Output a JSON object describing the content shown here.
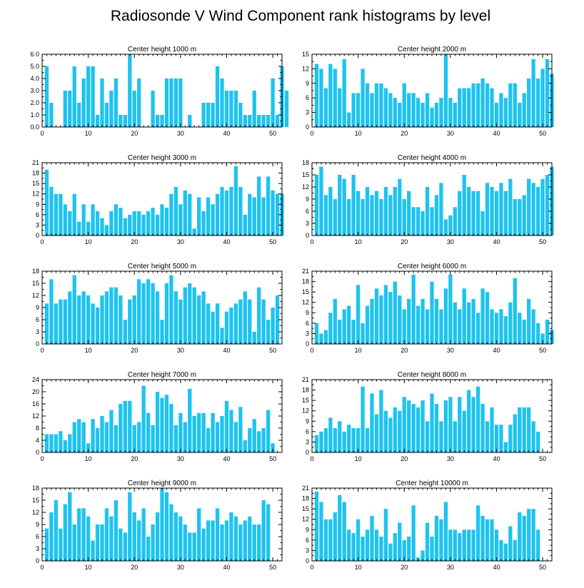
{
  "title": "Radiosonde V Wind Component rank histograms by level",
  "colors": {
    "bar": "#1ec3f0",
    "axis": "#000000",
    "background": "#ffffff"
  },
  "chart_data": [
    {
      "type": "bar",
      "title": "Center height 1000 m",
      "xlim": [
        0,
        52
      ],
      "ylim": [
        0,
        6
      ],
      "xticks": [
        0,
        10,
        20,
        30,
        40,
        50
      ],
      "yticks": [
        "0.0",
        "1.0",
        "2.0",
        "3.0",
        "4.0",
        "5.0",
        "6.0"
      ],
      "values": [
        5,
        2,
        0,
        0,
        3,
        3,
        5,
        2,
        4,
        5,
        5,
        1,
        4,
        2,
        3,
        4,
        1,
        1,
        6,
        3,
        4,
        0,
        0,
        3,
        1,
        1,
        4,
        4,
        4,
        4,
        0,
        1,
        0,
        0,
        2,
        2,
        2,
        5,
        4,
        3,
        3,
        3,
        2,
        1,
        1,
        3,
        1,
        1,
        1,
        4,
        1,
        5,
        3
      ]
    },
    {
      "type": "bar",
      "title": "Center height 2000 m",
      "xlim": [
        0,
        52
      ],
      "ylim": [
        0,
        15
      ],
      "xticks": [
        0,
        10,
        20,
        30,
        40,
        50
      ],
      "yticks": [
        "0",
        "3",
        "6",
        "9",
        "12",
        "15"
      ],
      "values": [
        13,
        12,
        8,
        13,
        12,
        8,
        14,
        3,
        7,
        7,
        12,
        9,
        7,
        9,
        9,
        8,
        7,
        6,
        5,
        9,
        7,
        7,
        6,
        5,
        7,
        4,
        5,
        6,
        15,
        6,
        5,
        8,
        8,
        8,
        9,
        9,
        10,
        9,
        8,
        5,
        7,
        6,
        9,
        9,
        5,
        7,
        10,
        14,
        10,
        12,
        14,
        11
      ]
    },
    {
      "type": "bar",
      "title": "Center height 3000 m",
      "xlim": [
        0,
        52
      ],
      "ylim": [
        0,
        21
      ],
      "xticks": [
        0,
        10,
        20,
        30,
        40,
        50
      ],
      "yticks": [
        "0",
        "3",
        "6",
        "9",
        "12",
        "15",
        "18",
        "21"
      ],
      "values": [
        19,
        14,
        12,
        12,
        9,
        7,
        12,
        4,
        9,
        4,
        9,
        7,
        5,
        3,
        7,
        9,
        8,
        5,
        6,
        7,
        7,
        6,
        7,
        8,
        6,
        9,
        8,
        12,
        14,
        9,
        13,
        12,
        2,
        11,
        7,
        11,
        9,
        12,
        14,
        13,
        14,
        20,
        14,
        6,
        12,
        11,
        17,
        11,
        17,
        13,
        12,
        12
      ]
    },
    {
      "type": "bar",
      "title": "Center height 4000 m",
      "xlim": [
        0,
        52
      ],
      "ylim": [
        0,
        18
      ],
      "xticks": [
        0,
        10,
        20,
        30,
        40,
        50
      ],
      "yticks": [
        "0",
        "3",
        "6",
        "9",
        "12",
        "15",
        "18"
      ],
      "values": [
        15,
        17,
        10,
        12,
        9,
        15,
        14,
        9,
        15,
        11,
        9,
        12,
        10,
        11,
        9,
        12,
        10,
        12,
        14,
        9,
        11,
        7,
        7,
        6,
        12,
        7,
        10,
        13,
        4,
        5,
        7,
        11,
        15,
        12,
        11,
        11,
        6,
        13,
        12,
        11,
        13,
        11,
        14,
        9,
        9,
        10,
        14,
        13,
        12,
        14,
        15,
        17
      ]
    },
    {
      "type": "bar",
      "title": "Center height 5000 m",
      "xlim": [
        0,
        52
      ],
      "ylim": [
        0,
        18
      ],
      "xticks": [
        0,
        10,
        20,
        30,
        40,
        50
      ],
      "yticks": [
        "0",
        "3",
        "6",
        "9",
        "12",
        "15",
        "18"
      ],
      "values": [
        10,
        16,
        10,
        11,
        11,
        13,
        17,
        12,
        13,
        12,
        10,
        9,
        12,
        13,
        14,
        14,
        12,
        6,
        11,
        12,
        16,
        15,
        16,
        15,
        13,
        6,
        15,
        17,
        13,
        11,
        14,
        15,
        14,
        12,
        13,
        10,
        8,
        10,
        4,
        8,
        9,
        10,
        11,
        13,
        11,
        3,
        14,
        11,
        6,
        9,
        12
      ]
    },
    {
      "type": "bar",
      "title": "Center height 6000 m",
      "xlim": [
        0,
        52
      ],
      "ylim": [
        0,
        21
      ],
      "xticks": [
        0,
        10,
        20,
        30,
        40,
        50
      ],
      "yticks": [
        "0",
        "3",
        "6",
        "9",
        "12",
        "15",
        "18",
        "21"
      ],
      "values": [
        6,
        3,
        4,
        9,
        13,
        7,
        10,
        11,
        7,
        17,
        6,
        11,
        13,
        16,
        14,
        17,
        15,
        18,
        14,
        10,
        13,
        20,
        11,
        13,
        10,
        18,
        13,
        10,
        16,
        20,
        12,
        10,
        16,
        12,
        13,
        9,
        16,
        15,
        10,
        9,
        10,
        8,
        12,
        19,
        9,
        7,
        13,
        10,
        6,
        3,
        7,
        4
      ]
    },
    {
      "type": "bar",
      "title": "Center height 7000 m",
      "xlim": [
        0,
        52
      ],
      "ylim": [
        0,
        24
      ],
      "xticks": [
        0,
        10,
        20,
        30,
        40,
        50
      ],
      "yticks": [
        "0",
        "4",
        "8",
        "12",
        "16",
        "20",
        "24"
      ],
      "values": [
        6,
        6,
        6,
        7,
        4,
        6,
        10,
        11,
        10,
        3,
        11,
        8,
        12,
        10,
        14,
        9,
        16,
        17,
        17,
        9,
        10,
        22,
        13,
        9,
        20,
        18,
        19,
        16,
        9,
        13,
        10,
        21,
        12,
        13,
        13,
        8,
        13,
        10,
        12,
        17,
        14,
        10,
        15,
        4,
        8,
        11,
        7,
        8,
        14,
        3
      ]
    },
    {
      "type": "bar",
      "title": "Center height 8000 m",
      "xlim": [
        0,
        52
      ],
      "ylim": [
        0,
        21
      ],
      "xticks": [
        0,
        10,
        20,
        30,
        40,
        50
      ],
      "yticks": [
        "0",
        "3",
        "6",
        "9",
        "12",
        "15",
        "18",
        "21"
      ],
      "values": [
        5,
        6,
        7,
        10,
        7,
        9,
        6,
        8,
        7,
        7,
        19,
        7,
        17,
        11,
        18,
        12,
        10,
        13,
        12,
        16,
        15,
        14,
        13,
        15,
        9,
        17,
        14,
        9,
        15,
        16,
        9,
        16,
        12,
        18,
        16,
        19,
        14,
        9,
        13,
        8,
        8,
        3,
        8,
        11,
        13,
        13,
        13,
        9,
        6
      ]
    },
    {
      "type": "bar",
      "title": "Center height 9000 m",
      "xlim": [
        0,
        52
      ],
      "ylim": [
        0,
        18
      ],
      "xticks": [
        0,
        10,
        20,
        30,
        40,
        50
      ],
      "yticks": [
        "0",
        "3",
        "6",
        "9",
        "12",
        "15",
        "18"
      ],
      "values": [
        8,
        12,
        15,
        8,
        14,
        17,
        9,
        13,
        13,
        11,
        5,
        9,
        9,
        13,
        11,
        15,
        8,
        7,
        17,
        12,
        10,
        13,
        6,
        9,
        12,
        18,
        17,
        14,
        12,
        11,
        9,
        7,
        7,
        13,
        8,
        10,
        10,
        13,
        9,
        10,
        12,
        11,
        9,
        10,
        11,
        9,
        9,
        15,
        14
      ]
    },
    {
      "type": "bar",
      "title": "Center height 10000 m",
      "xlim": [
        0,
        52
      ],
      "ylim": [
        0,
        21
      ],
      "xticks": [
        0,
        10,
        20,
        30,
        40,
        50
      ],
      "yticks": [
        "0",
        "3",
        "6",
        "9",
        "12",
        "15",
        "18",
        "21"
      ],
      "values": [
        20,
        17,
        12,
        12,
        14,
        19,
        17,
        9,
        8,
        12,
        7,
        9,
        13,
        9,
        7,
        15,
        5,
        8,
        11,
        6,
        7,
        16,
        1,
        3,
        11,
        7,
        13,
        12,
        17,
        9,
        9,
        8,
        9,
        9,
        9,
        16,
        13,
        12,
        12,
        9,
        6,
        5,
        10,
        6,
        14,
        13,
        15,
        15,
        9
      ]
    }
  ]
}
